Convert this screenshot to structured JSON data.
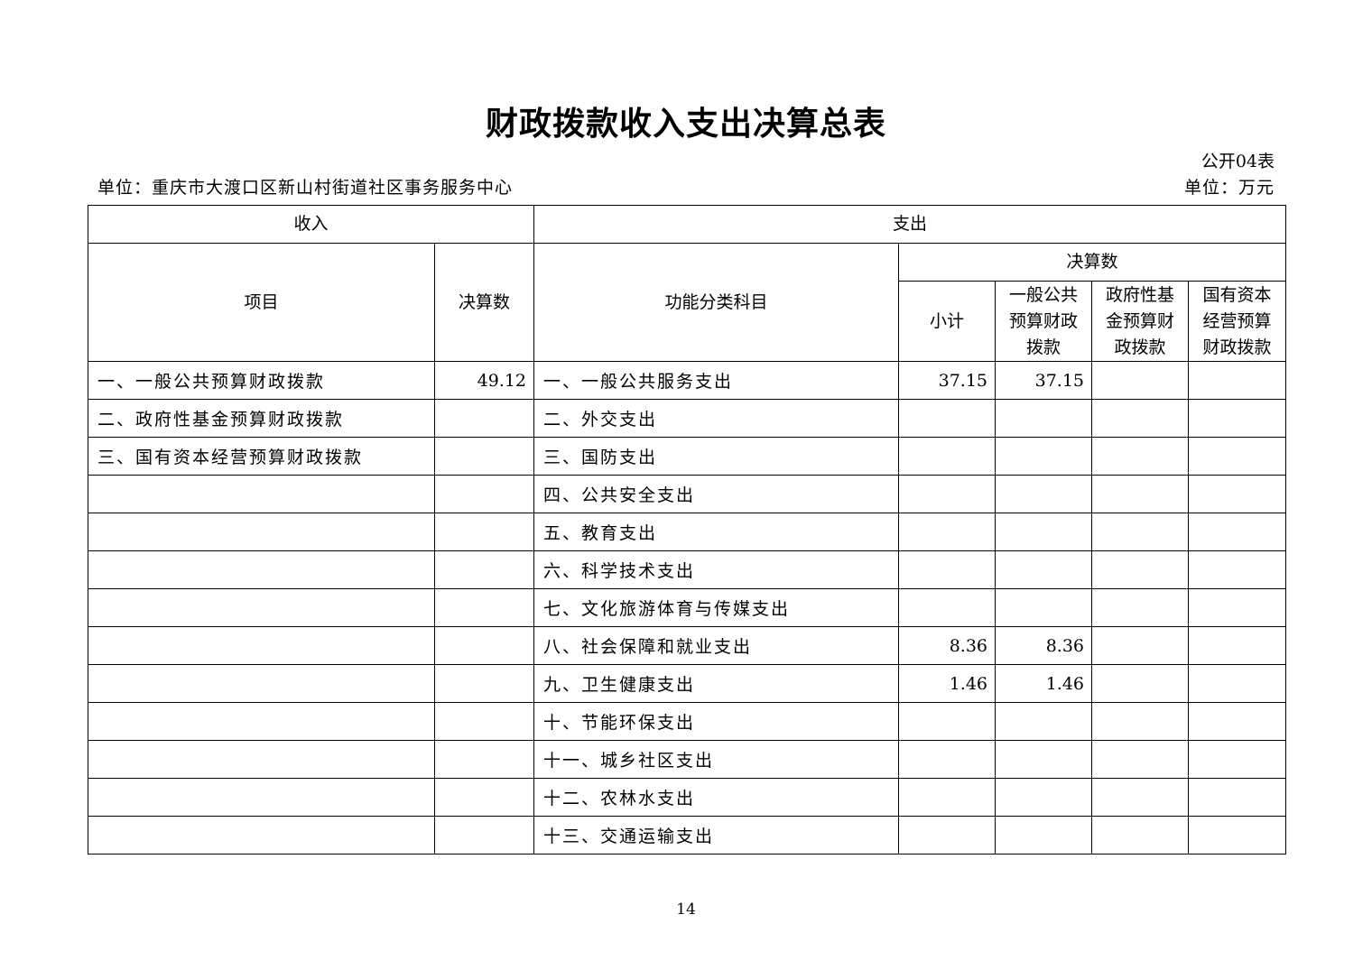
{
  "title": "财政拨款收入支出决算总表",
  "table_code": "公开04表",
  "unit_left": "单位：重庆市大渡口区新山村街道社区事务服务中心",
  "unit_right": "单位：万元",
  "headers": {
    "income": "收入",
    "expense": "支出",
    "item": "项目",
    "income_amount": "决算数",
    "function_category": "功能分类科目",
    "expense_amount": "决算数",
    "subtotal": "小计",
    "general_budget": "一般公共预算财政拨款",
    "gov_fund": "政府性基金预算财政拨款",
    "state_capital": "国有资本经营预算财政拨款"
  },
  "rows": [
    {
      "income_item": "一、一般公共预算财政拨款",
      "income_amount": "49.12",
      "expense_item": "一、一般公共服务支出",
      "subtotal": "37.15",
      "general": "37.15",
      "fund": "",
      "state": ""
    },
    {
      "income_item": "二、政府性基金预算财政拨款",
      "income_amount": "",
      "expense_item": "二、外交支出",
      "subtotal": "",
      "general": "",
      "fund": "",
      "state": ""
    },
    {
      "income_item": "三、国有资本经营预算财政拨款",
      "income_amount": "",
      "expense_item": "三、国防支出",
      "subtotal": "",
      "general": "",
      "fund": "",
      "state": ""
    },
    {
      "income_item": "",
      "income_amount": "",
      "expense_item": "四、公共安全支出",
      "subtotal": "",
      "general": "",
      "fund": "",
      "state": ""
    },
    {
      "income_item": "",
      "income_amount": "",
      "expense_item": "五、教育支出",
      "subtotal": "",
      "general": "",
      "fund": "",
      "state": ""
    },
    {
      "income_item": "",
      "income_amount": "",
      "expense_item": "六、科学技术支出",
      "subtotal": "",
      "general": "",
      "fund": "",
      "state": ""
    },
    {
      "income_item": "",
      "income_amount": "",
      "expense_item": "七、文化旅游体育与传媒支出",
      "subtotal": "",
      "general": "",
      "fund": "",
      "state": ""
    },
    {
      "income_item": "",
      "income_amount": "",
      "expense_item": "八、社会保障和就业支出",
      "subtotal": "8.36",
      "general": "8.36",
      "fund": "",
      "state": ""
    },
    {
      "income_item": "",
      "income_amount": "",
      "expense_item": "九、卫生健康支出",
      "subtotal": "1.46",
      "general": "1.46",
      "fund": "",
      "state": ""
    },
    {
      "income_item": "",
      "income_amount": "",
      "expense_item": "十、节能环保支出",
      "subtotal": "",
      "general": "",
      "fund": "",
      "state": ""
    },
    {
      "income_item": "",
      "income_amount": "",
      "expense_item": "十一、城乡社区支出",
      "subtotal": "",
      "general": "",
      "fund": "",
      "state": ""
    },
    {
      "income_item": "",
      "income_amount": "",
      "expense_item": "十二、农林水支出",
      "subtotal": "",
      "general": "",
      "fund": "",
      "state": ""
    },
    {
      "income_item": "",
      "income_amount": "",
      "expense_item": "十三、交通运输支出",
      "subtotal": "",
      "general": "",
      "fund": "",
      "state": ""
    }
  ],
  "page_number": "14"
}
